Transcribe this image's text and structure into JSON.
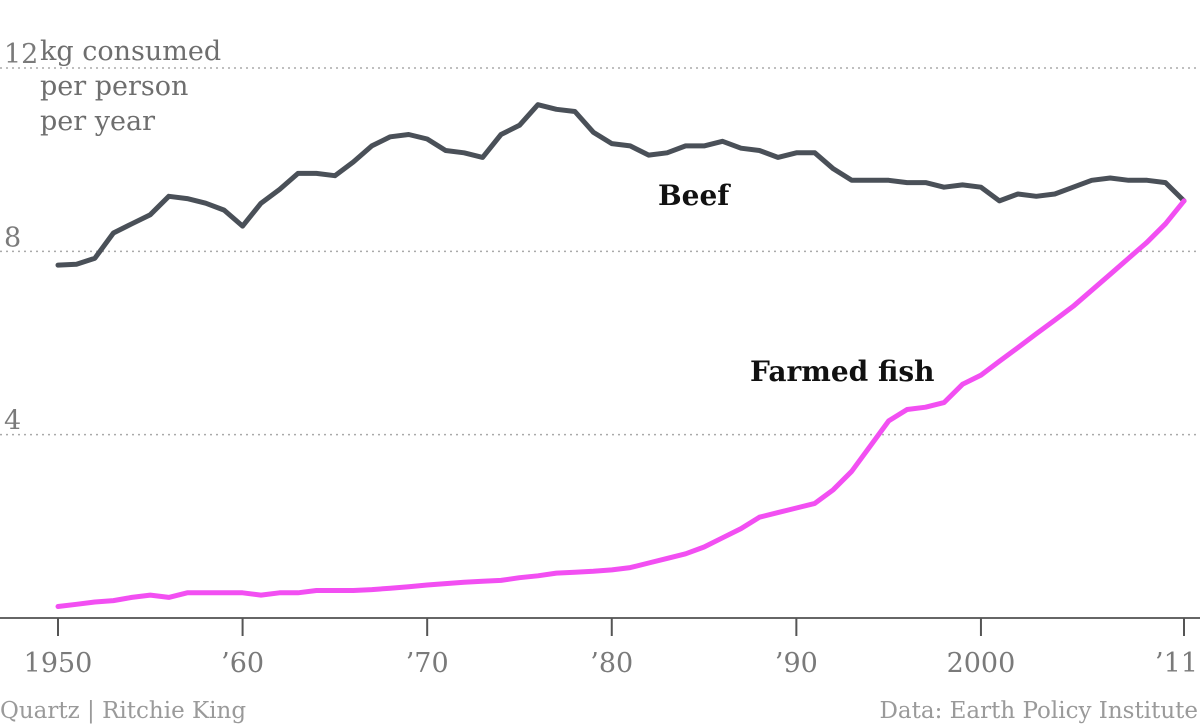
{
  "chart_data": {
    "type": "line",
    "title": "",
    "ylabel_lines": [
      "kg consumed",
      "per person",
      "per year"
    ],
    "ylim": [
      0,
      12
    ],
    "yticks": [
      {
        "value": 12,
        "label": "12"
      },
      {
        "value": 8,
        "label": "8"
      },
      {
        "value": 4,
        "label": "4"
      }
    ],
    "xlim": [
      1950,
      2011
    ],
    "xticks": [
      {
        "value": 1950,
        "label": "1950"
      },
      {
        "value": 1960,
        "label": "’60"
      },
      {
        "value": 1970,
        "label": "’70"
      },
      {
        "value": 1980,
        "label": "’80"
      },
      {
        "value": 1990,
        "label": "’90"
      },
      {
        "value": 2000,
        "label": "2000"
      },
      {
        "value": 2011,
        "label": "’11"
      }
    ],
    "grid": "horizontal-dotted",
    "x": [
      1950,
      1951,
      1952,
      1953,
      1954,
      1955,
      1956,
      1957,
      1958,
      1959,
      1960,
      1961,
      1962,
      1963,
      1964,
      1965,
      1966,
      1967,
      1968,
      1969,
      1970,
      1971,
      1972,
      1973,
      1974,
      1975,
      1976,
      1977,
      1978,
      1979,
      1980,
      1981,
      1982,
      1983,
      1984,
      1985,
      1986,
      1987,
      1988,
      1989,
      1990,
      1991,
      1992,
      1993,
      1994,
      1995,
      1996,
      1997,
      1998,
      1999,
      2000,
      2001,
      2002,
      2003,
      2004,
      2005,
      2006,
      2007,
      2008,
      2009,
      2010,
      2011
    ],
    "series": [
      {
        "name": "Beef",
        "color": "#4a5058",
        "values": [
          7.7,
          7.72,
          7.85,
          8.4,
          8.6,
          8.8,
          9.2,
          9.15,
          9.05,
          8.9,
          8.55,
          9.05,
          9.35,
          9.7,
          9.7,
          9.65,
          9.95,
          10.3,
          10.5,
          10.55,
          10.45,
          10.2,
          10.15,
          10.05,
          10.55,
          10.75,
          11.2,
          11.1,
          11.05,
          10.6,
          10.35,
          10.3,
          10.1,
          10.15,
          10.3,
          10.3,
          10.4,
          10.25,
          10.2,
          10.05,
          10.15,
          10.15,
          9.8,
          9.55,
          9.55,
          9.55,
          9.5,
          9.5,
          9.4,
          9.45,
          9.4,
          9.1,
          9.25,
          9.2,
          9.25,
          9.4,
          9.55,
          9.6,
          9.55,
          9.55,
          9.5,
          9.1
        ]
      },
      {
        "name": "Farmed fish",
        "color": "#f24ff2",
        "values": [
          0.25,
          0.3,
          0.35,
          0.38,
          0.45,
          0.5,
          0.45,
          0.55,
          0.55,
          0.55,
          0.55,
          0.5,
          0.55,
          0.55,
          0.6,
          0.6,
          0.6,
          0.62,
          0.65,
          0.68,
          0.72,
          0.75,
          0.78,
          0.8,
          0.82,
          0.88,
          0.92,
          0.98,
          1.0,
          1.02,
          1.05,
          1.1,
          1.2,
          1.3,
          1.4,
          1.55,
          1.75,
          1.95,
          2.2,
          2.3,
          2.4,
          2.5,
          2.8,
          3.2,
          3.75,
          4.3,
          4.55,
          4.6,
          4.7,
          5.1,
          5.3,
          5.6,
          5.9,
          6.2,
          6.5,
          6.8,
          7.15,
          7.5,
          7.85,
          8.2,
          8.6,
          9.1
        ]
      }
    ]
  },
  "credits": {
    "left": "Quartz | Ritchie King",
    "right": "Data: Earth Policy Institute"
  }
}
